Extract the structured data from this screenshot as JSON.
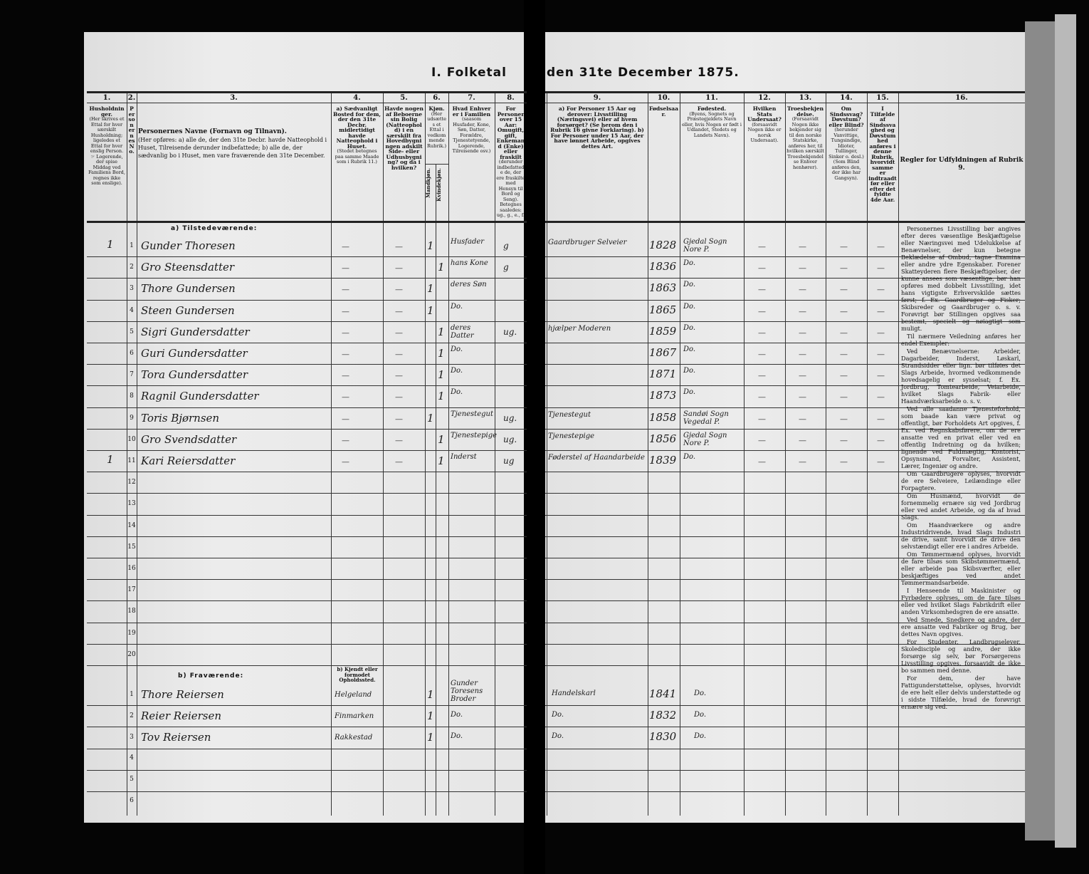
{
  "title_left": "I. Folketal",
  "title_right": "den 31te December 1875.",
  "columns": [
    {
      "num": "1.",
      "head": "Husholdninger.",
      "sub": "(Her skrives et Ettal for hver særskilt Husholdning; ligeledes et Ettal for hver enslig Person. ☞ Logerende, der spise Middag ved Familiens Bord, regnes ikke som enslige)."
    },
    {
      "num": "2.",
      "head": "Personernes No.",
      "sub": ""
    },
    {
      "num": "3.",
      "head": "Personernes Navne (Fornavn og Tilnavn).",
      "sub": "(Her opføres: a) alle de, der den 31te Decbr. havde Natteophold i Huset, Tilreisende derunder indbefattede; b) alle de, der sædvanlig bo i Huset, men vare fraværende den 31te December."
    },
    {
      "num": "4.",
      "head": "a) Sædvanligt Bosted for dem, der den 31te Decbr. midlertidigt havde Natteophold i Huset.",
      "sub": "(Stedet betegnes paa samme Maade som i Rubrik 11.)"
    },
    {
      "num": "5.",
      "head": "Havde nogen af Beboerne sin Bolig (Natteophold) i en særskilt fra Hovedbygningen adskilt Side- eller Udhusbygning? og da i hvilken?",
      "sub": ""
    },
    {
      "num": "6.",
      "head": "Kjøn.",
      "sub": "(Her udsættes et Ettal i vedkommende Rubrik.)",
      "male": "Mandkjøn.",
      "female": "Kvindekjøn."
    },
    {
      "num": "7.",
      "head": "Hvad Enhver er i Familien",
      "sub": "(saasom Husfader, Kone, Søn, Datter, Forældre, Tjenestetyende, Logerende, Tilreisende osv.)"
    },
    {
      "num": "8.",
      "head": "For Personer over 15 Aar: Omugift, gift, Enkemand (Enke) eller fraskilt",
      "sub": "(derunder indbefattede de, der ere fraskilte med Hensyn til Bord og Seng). Betegnes saaledes: ug., g., e., f."
    },
    {
      "num": "9.",
      "head": "a) For Personer 15 Aar og derover: Livsstilling (Næringsvei) eller af hvem forsørget? (Se herom den i Rubrik 16 givne Forklaring). b) For Personer under 15 Aar, der have lønnet Arbeide, opgives dettes Art.",
      "sub": ""
    },
    {
      "num": "10.",
      "head": "Fødselsaar.",
      "sub": ""
    },
    {
      "num": "11.",
      "head": "Fødested.",
      "sub": "(Byens, Sognets og Præstegjeldets Navn eller, hvis Nogen er født i Udlandet, Stedets og Landets Navn)."
    },
    {
      "num": "12.",
      "head": "Hvilken Stats Undersaat?",
      "sub": "(forsaavidt Nogen ikke er norsk Undersaat)."
    },
    {
      "num": "13.",
      "head": "Troesbekjendelse.",
      "sub": "(Forsaavidt Nogen ikke bekjender sig til den norske Statskirke, anføres her, til hvilken særskilt Troesbekjendelse Enhver henhører)."
    },
    {
      "num": "14.",
      "head": "Om Sindssvag? Døvstum? eller Blind?",
      "sub": "(herunder Vanvittige, Tungsindige, Idioter, Tullinger, Sinker o. desl.) (Som Blind anføres den, der ikke har Gangsyn)."
    },
    {
      "num": "15.",
      "head": "I Tilfælde af Sindssvaghed og Døvstumhed anføres i denne Rubrik, hvorvidt samme er indtraadt før eller efter det fyldte 4de Aar.",
      "sub": ""
    },
    {
      "num": "16.",
      "head": "Regler for Udfyldningen af Rubrik 9.",
      "sub": ""
    }
  ],
  "section_present": "a) Tilstedeværende:",
  "section_absent": "b) Fraværende:",
  "absent_col4_head": "b) Kjendt eller formodet Opholdssted.",
  "blank_mark": "—",
  "present_rows": [
    {
      "no": "1",
      "household": "1",
      "name": "Gunder Thoresen",
      "male": "1",
      "female": "",
      "family": "Husfader",
      "civil": "g",
      "occupation": "Gaardbruger Selveier",
      "year": "1828",
      "birthplace": "Gjedal Sogn Nore P."
    },
    {
      "no": "2",
      "household": "",
      "name": "Gro Steensdatter",
      "male": "",
      "female": "1",
      "family": "hans Kone",
      "civil": "g",
      "occupation": "",
      "year": "1836",
      "birthplace": "Do."
    },
    {
      "no": "3",
      "household": "",
      "name": "Thore Gundersen",
      "male": "1",
      "female": "",
      "family": "deres Søn",
      "civil": "",
      "occupation": "",
      "year": "1863",
      "birthplace": "Do."
    },
    {
      "no": "4",
      "household": "",
      "name": "Steen Gundersen",
      "male": "1",
      "female": "",
      "family": "Do.",
      "civil": "",
      "occupation": "",
      "year": "1865",
      "birthplace": "Do."
    },
    {
      "no": "5",
      "household": "",
      "name": "Sigri Gundersdatter",
      "male": "",
      "female": "1",
      "family": "deres Datter",
      "civil": "ug.",
      "occupation": "hjælper Moderen",
      "year": "1859",
      "birthplace": "Do."
    },
    {
      "no": "6",
      "household": "",
      "name": "Guri Gundersdatter",
      "male": "",
      "female": "1",
      "family": "Do.",
      "civil": "",
      "occupation": "",
      "year": "1867",
      "birthplace": "Do."
    },
    {
      "no": "7",
      "household": "",
      "name": "Tora Gundersdatter",
      "male": "",
      "female": "1",
      "family": "Do.",
      "civil": "",
      "occupation": "",
      "year": "1871",
      "birthplace": "Do."
    },
    {
      "no": "8",
      "household": "",
      "name": "Ragnil Gundersdatter",
      "male": "",
      "female": "1",
      "family": "Do.",
      "civil": "",
      "occupation": "",
      "year": "1873",
      "birthplace": "Do."
    },
    {
      "no": "9",
      "household": "",
      "name": "Toris Bjørnsen",
      "male": "1",
      "female": "",
      "family": "Tjenestegut",
      "civil": "ug.",
      "occupation": "Tjenestegut",
      "year": "1858",
      "birthplace": "Sandøi Sogn Vegedal P."
    },
    {
      "no": "10",
      "household": "",
      "name": "Gro Svendsdatter",
      "male": "",
      "female": "1",
      "family": "Tjenestepige",
      "civil": "ug.",
      "occupation": "Tjenestepige",
      "year": "1856",
      "birthplace": "Gjedal Sogn Nore P."
    },
    {
      "no": "11",
      "household": "1",
      "name": "Kari Reiersdatter",
      "male": "",
      "female": "1",
      "family": "Inderst",
      "civil": "ug",
      "occupation": "Føderstel af Haandarbeide",
      "year": "1839",
      "birthplace": "Do."
    }
  ],
  "empty_row_numbers": [
    "12",
    "13",
    "14",
    "15",
    "16",
    "17",
    "18",
    "19",
    "20"
  ],
  "absent_rows": [
    {
      "no": "1",
      "name": "Thore Reiersen",
      "residence": "Helgeland",
      "male": "1",
      "family": "Gunder Toresens Broder",
      "occupation": "Handelskarl",
      "year": "1841",
      "birthplace": "Do."
    },
    {
      "no": "2",
      "name": "Reier Reiersen",
      "residence": "Finmarken",
      "male": "1",
      "family": "Do.",
      "occupation": "Do.",
      "year": "1832",
      "birthplace": "Do."
    },
    {
      "no": "3",
      "name": "Tov Reiersen",
      "residence": "Rakkestad",
      "male": "1",
      "family": "Do.",
      "occupation": "Do.",
      "year": "1830",
      "birthplace": "Do."
    }
  ],
  "absent_empty_numbers": [
    "4",
    "5",
    "6"
  ],
  "rules_text": [
    "Personernes Livsstilling bør angives efter deres væsentlige Beskjæftigelse eller Næringsvei med Udelukkelse af Benævnelser, der kun betegne Beklædelse af Ombud, tagne Examina eller andre ydre Egenskaber. Forener Skatteyderen flere Beskjæftigelser, der kunne ansees som væsentlige, bør han opføres med dobbelt Livsstilling, idet hans vigtigste Erhvervskilde sættes først; f. Ex. Gaardbruger og Fisker; Skibsreder og Gaardbruger o. s. v. Forøvrigt bør Stillingen opgives saa bestemt, specielt og nøiagtigt som muligt.",
    "Til nærmere Veiledning anføres her endel Exempler:",
    "Ved Benævnelserne: Arbeider, Dagarbeider, Inderst, Løskarl, Strandsidder eller lign. bør tilføies det Slags Arbeide, hvormed vedkommende hovedsagelig er sysselsat; f. Ex. Jordbrug, Tomtearbeide, Veiarbeide, hvilket Slags Fabrik- eller Haandværksarbeide o. s. v.",
    "Ved alle saadanne Tjenesteforhold, som baade kan være privat og offentligt, bør Forholdets Art opgives, f. Ex. ved Regnskabsførere, om de ere ansatte ved en privat eller ved en offentlig Indretning og da hvilken; lignende ved Fuldmægtig, Kontorist, Opsynsmand, Forvalter, Assistent, Lærer, Ingeniør og andre.",
    "Om Gaardbrugere oplyses, hvorvidt de ere Selveiere, Leilændinge eller Forpagtere.",
    "Om Husmænd, hvorvidt de fornemmelig ernære sig ved Jordbrug eller ved andet Arbeide, og da af hvad Slags.",
    "Om Haandværkere og andre Industridrivende, hvad Slags Industri de drive, samt hvorvidt de drive den selvstændigt eller ere i andres Arbeide.",
    "Om Tømmermænd oplyses, hvorvidt de fare tilsøs som Skibstømmermænd, eller arbeide paa Skibsværfter, eller beskjæftiges ved andet Tømmermandsarbeide.",
    "I Henseende til Maskinister og Fyrbødere oplyses, om de fare tilsøs eller ved hvilket Slags Fabrikdrift eller anden Virksomhedsgren de ere ansatte.",
    "Ved Smede, Snedkere og andre, der ere ansatte ved Fabriker og Brug, bør dettes Navn opgives.",
    "For Studenter, Landbrugselever, Skoledisciple og andre, der ikke forsørge sig selv, bør Forsørgerens Livsstilling opgives, forsaavidt de ikke bo sammen med denne.",
    "For dem, der have Fattigunderstøttelse, oplyses, hvorvidt de ere helt eller delvis understøttede og i sidste Tilfælde, hvad de forøvrigt ernære sig ved."
  ],
  "colors": {
    "paper": "#e9e9e9",
    "background": "#050505",
    "ink": "#111111"
  }
}
